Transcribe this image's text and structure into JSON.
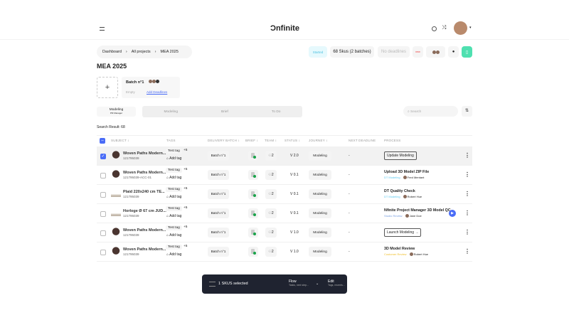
{
  "header": {
    "logo": "Ɔnfinite",
    "menu_icon": "menu-icon",
    "help_icon": "help-icon",
    "shuffle_icon": "shuffle-icon"
  },
  "breadcrumb": [
    "Dashboard",
    "All projects",
    "MEA 2025"
  ],
  "project_bar": {
    "status": "Started",
    "skus": "68 Skus (2 batches)",
    "deadline": "No deadlines",
    "flag": "new"
  },
  "page_title": "MEA 2025",
  "batch": {
    "name": "Batch n°1",
    "state": "Empty",
    "add_deadlines": "Add Deadlines"
  },
  "tabs": {
    "active": "Modeling",
    "active_sub": "PM Manager",
    "items": [
      "Modeling",
      "Brief",
      "To Do"
    ]
  },
  "search": {
    "placeholder": "Search"
  },
  "result": "Search Result: 68",
  "columns": [
    "SUBJECT ↕",
    "TAGS",
    "DELIVERY BATCH ↕",
    "BRIEF ↕",
    "TEAM ↕",
    "STATUS ↕",
    "JOURNEY ↕",
    "NEXT DEADLINE",
    "PROCESS"
  ],
  "rows": [
    {
      "selected": true,
      "subject": "Woven Paths Modern...",
      "sku": "121795039",
      "tag": "Test tag",
      "more": "+5",
      "add": "Add tag",
      "batch": "Batch n°1",
      "team": "2",
      "status": "V 2.0",
      "journey": "Modeling",
      "deadline": "-",
      "process_button": "Update Modeling",
      "thumb": "chair"
    },
    {
      "selected": false,
      "subject": "Woven Paths Modern...",
      "sku": "121795039-ACC-01",
      "tag": "Test tag",
      "more": "+5",
      "add": "Add tag",
      "batch": "Batch n°1",
      "team": "2",
      "status": "V 0.1",
      "journey": "Modeling",
      "deadline": "-",
      "process_title": "Upload 3D Model ZIP File",
      "process_stage": "DT Modeling",
      "stage_color": "#5ac8f0",
      "assignee": "Fred Mentant",
      "thumb": "chair"
    },
    {
      "selected": false,
      "subject": "Plaid 220x240 cm TE...",
      "sku": "121795039",
      "tag": "Test tag",
      "more": "+5",
      "add": "Add tag",
      "batch": "Batch n°1",
      "team": "2",
      "status": "V 0.1",
      "journey": "Modeling",
      "deadline": "-",
      "process_title": "DT Quality Check",
      "process_stage": "DT Modeling",
      "stage_color": "#5ac8f0",
      "assignee": "Robert Hue",
      "thumb": "plaid"
    },
    {
      "selected": false,
      "subject": "Horloge Ø 67 cm JUD...",
      "sku": "121795039",
      "tag": "Test tag",
      "more": "+5",
      "add": "Add tag",
      "batch": "Batch n°1",
      "team": "2",
      "status": "V 0.1",
      "journey": "Modeling",
      "deadline": "-",
      "process_title": "Nfinite Project Manager 3D Model QC",
      "process_stage": "Studio Review",
      "stage_color": "#7aa0e0",
      "assignee": "Jane Doe",
      "play": true,
      "thumb": "plaid"
    },
    {
      "selected": false,
      "subject": "Woven Paths Modern...",
      "sku": "121795039",
      "tag": "Test tag",
      "more": "+5",
      "add": "Add tag",
      "batch": "Batch n°1",
      "team": "2",
      "status": "V 1.0",
      "journey": "Modeling",
      "deadline": "-",
      "process_button": "Launch Modeling →",
      "thumb": "chair"
    },
    {
      "selected": false,
      "subject": "Woven Paths Modern...",
      "sku": "121795039",
      "tag": "Test tag",
      "more": "+5",
      "add": "Add tag",
      "batch": "Batch n°1",
      "team": "2",
      "status": "V 1.0",
      "journey": "Modeling",
      "deadline": "-",
      "process_title": "3D Model Review",
      "process_stage": "Customer Review",
      "stage_color": "#f0c030",
      "assignee": "Robert Hue",
      "thumb": "chair"
    }
  ],
  "bottom_bar": {
    "selected": "1 SKUS selected",
    "flow": "Flow",
    "flow_sub": "Tasks, next step...",
    "edit": "Edit",
    "edit_sub": "Tags, recents..."
  },
  "colors": {
    "accent": "#4a6cf7",
    "bookmark": "#4fe0b0",
    "bar": "#1f2330"
  }
}
